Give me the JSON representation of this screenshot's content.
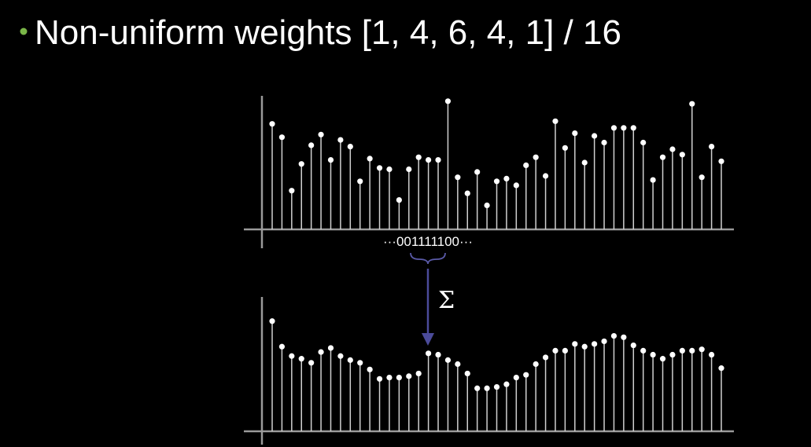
{
  "title": "Non-uniform weights [1, 4, 6, 4, 1] / 16",
  "kernel_label": "···001111100···",
  "operator": "Σ",
  "chart_data": [
    {
      "type": "stem",
      "ylim": [
        0,
        100
      ],
      "values": [
        79,
        69,
        29,
        49,
        63,
        71,
        52,
        67,
        62,
        36,
        53,
        46,
        45,
        22,
        45,
        54,
        52,
        52,
        96,
        39,
        27,
        43,
        18,
        36,
        38,
        33,
        48,
        54,
        40,
        81,
        61,
        72,
        50,
        70,
        65,
        76,
        76,
        76,
        65,
        37,
        54,
        60,
        56,
        94,
        39,
        62,
        51
      ]
    },
    {
      "type": "stem",
      "ylim": [
        0,
        100
      ],
      "values": [
        82,
        63,
        56,
        54,
        51,
        59,
        62,
        56,
        53,
        51,
        46,
        39,
        40,
        40,
        41,
        43,
        58,
        57,
        53,
        50,
        43,
        32,
        32,
        33,
        35,
        40,
        42,
        50,
        55,
        60,
        60,
        65,
        63,
        65,
        67,
        71,
        70,
        64,
        60,
        57,
        54,
        57,
        60,
        60,
        61,
        57,
        47
      ]
    }
  ]
}
